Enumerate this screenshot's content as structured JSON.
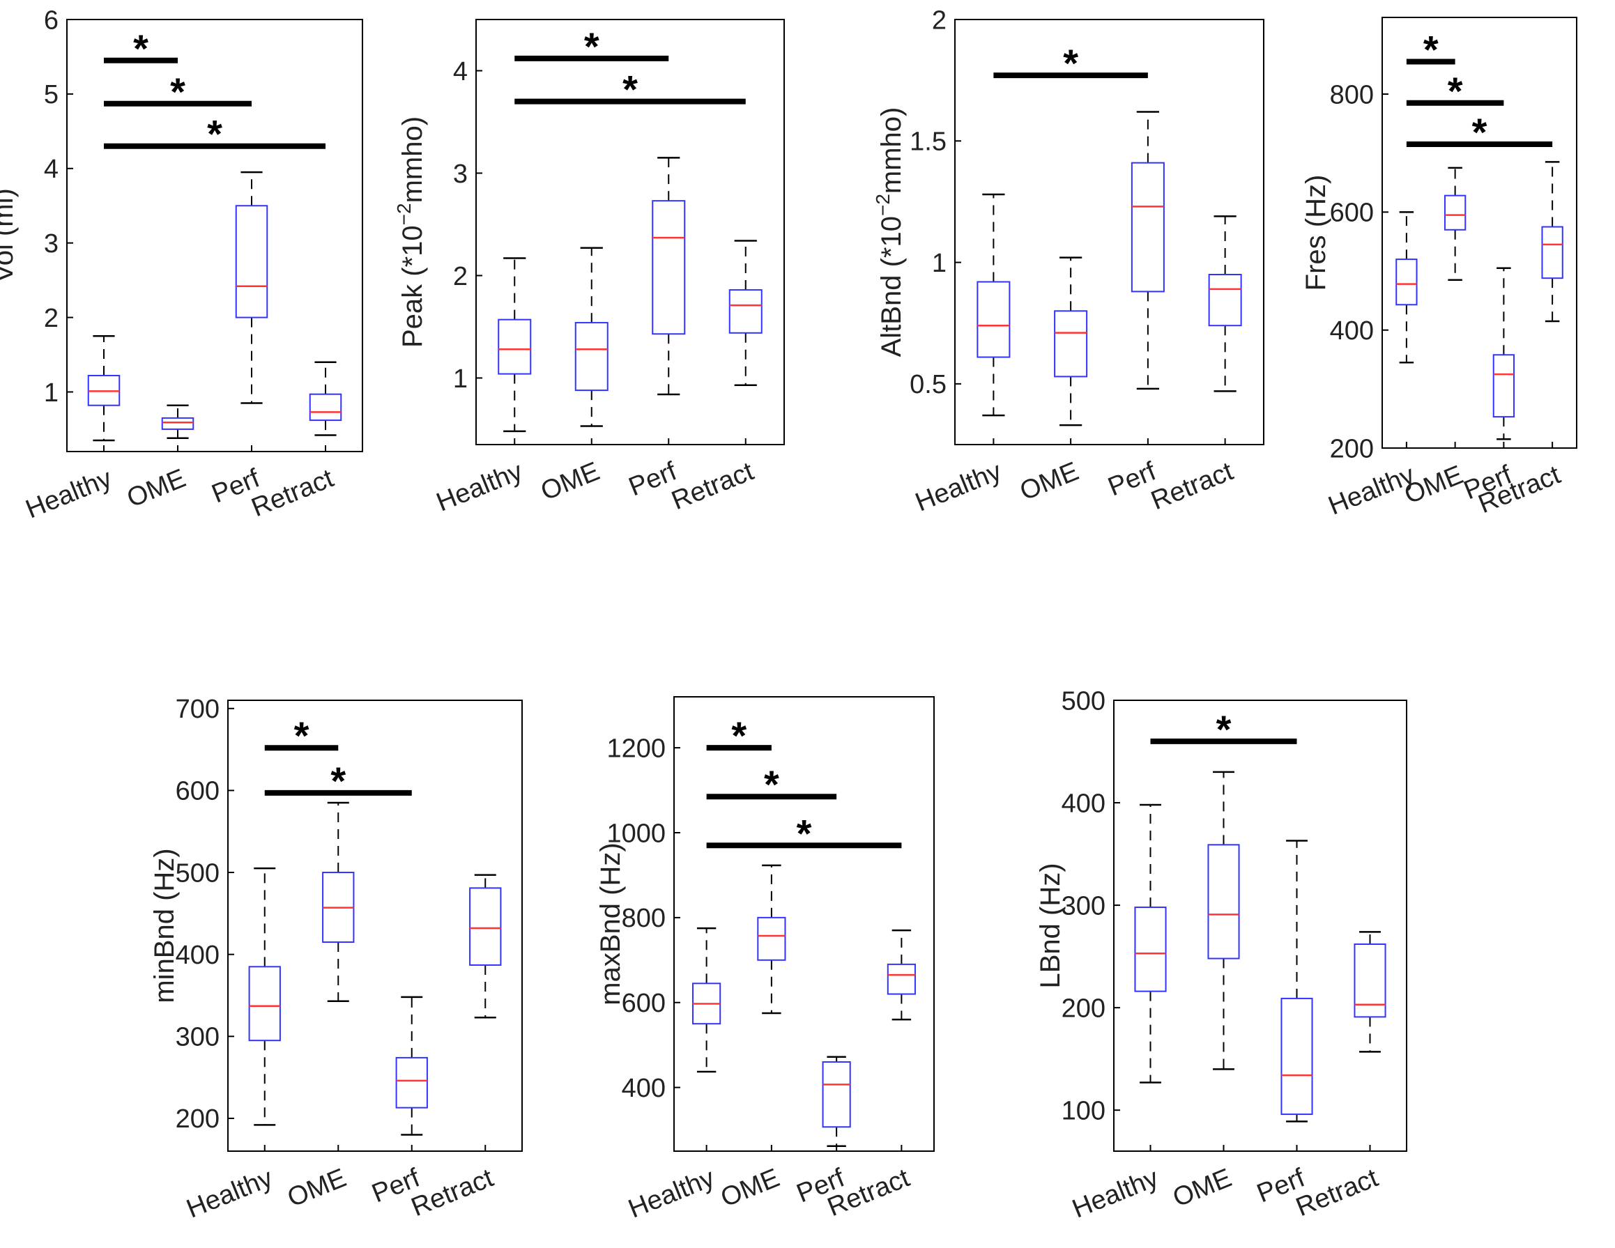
{
  "figure": {
    "colors": {
      "box": "#3333ff",
      "median": "#ff3333",
      "whisker": "#000000",
      "bar": "#000000",
      "axis": "#000000",
      "text": "#222222"
    }
  },
  "chart_data": [
    {
      "id": "vol",
      "type": "box",
      "ylabel": "Vol (ml)",
      "categories": [
        "Healthy",
        "OME",
        "Perf",
        "Retract"
      ],
      "ylim": [
        0.2,
        6
      ],
      "yticks": [
        1,
        2,
        3,
        4,
        5,
        6
      ],
      "boxes": [
        {
          "min": 0.35,
          "q1": 0.82,
          "median": 1.01,
          "q3": 1.22,
          "max": 1.75
        },
        {
          "min": 0.38,
          "q1": 0.5,
          "median": 0.59,
          "q3": 0.65,
          "max": 0.82
        },
        {
          "min": 0.85,
          "q1": 2.0,
          "median": 2.42,
          "q3": 3.5,
          "max": 3.95
        },
        {
          "min": 0.42,
          "q1": 0.62,
          "median": 0.73,
          "q3": 0.97,
          "max": 1.4
        }
      ],
      "significance": [
        {
          "from": "Healthy",
          "to": "OME",
          "y": 5.45,
          "label": "*"
        },
        {
          "from": "Healthy",
          "to": "Perf",
          "y": 4.87,
          "label": "*"
        },
        {
          "from": "Healthy",
          "to": "Retract",
          "y": 4.3,
          "label": "*"
        }
      ]
    },
    {
      "id": "peak",
      "type": "box",
      "ylabel": "Peak (*10",
      "ylabel_sup": "−2",
      "ylabel_tail": "mmho)",
      "categories": [
        "Healthy",
        "OME",
        "Perf",
        "Retract"
      ],
      "ylim": [
        0.35,
        4.5
      ],
      "yticks": [
        1,
        2,
        3,
        4
      ],
      "boxes": [
        {
          "min": 0.48,
          "q1": 1.04,
          "median": 1.28,
          "q3": 1.57,
          "max": 2.17
        },
        {
          "min": 0.53,
          "q1": 0.88,
          "median": 1.28,
          "q3": 1.54,
          "max": 2.27
        },
        {
          "min": 0.84,
          "q1": 1.43,
          "median": 2.37,
          "q3": 2.73,
          "max": 3.15
        },
        {
          "min": 0.93,
          "q1": 1.44,
          "median": 1.71,
          "q3": 1.86,
          "max": 2.34
        }
      ],
      "significance": [
        {
          "from": "Healthy",
          "to": "Perf",
          "y": 4.12,
          "label": "*"
        },
        {
          "from": "Healthy",
          "to": "Retract",
          "y": 3.7,
          "label": "*"
        }
      ]
    },
    {
      "id": "altbnd",
      "type": "box",
      "ylabel": "AltBnd (*10",
      "ylabel_sup": "−2",
      "ylabel_tail": "mmho)",
      "categories": [
        "Healthy",
        "OME",
        "Perf",
        "Retract"
      ],
      "ylim": [
        0.25,
        2
      ],
      "yticks": [
        0.5,
        1,
        1.5,
        2
      ],
      "boxes": [
        {
          "min": 0.37,
          "q1": 0.61,
          "median": 0.74,
          "q3": 0.92,
          "max": 1.28
        },
        {
          "min": 0.33,
          "q1": 0.53,
          "median": 0.71,
          "q3": 0.8,
          "max": 1.02
        },
        {
          "min": 0.48,
          "q1": 0.88,
          "median": 1.23,
          "q3": 1.41,
          "max": 1.62
        },
        {
          "min": 0.47,
          "q1": 0.74,
          "median": 0.89,
          "q3": 0.95,
          "max": 1.19
        }
      ],
      "significance": [
        {
          "from": "Healthy",
          "to": "Perf",
          "y": 1.77,
          "label": "*"
        }
      ]
    },
    {
      "id": "fres",
      "type": "box",
      "ylabel": "Fres (Hz)",
      "categories": [
        "Healthy",
        "OME",
        "Perf",
        "Retract"
      ],
      "ylim": [
        200,
        930
      ],
      "yticks": [
        200,
        400,
        600,
        800
      ],
      "boxes": [
        {
          "min": 345,
          "q1": 443,
          "median": 478,
          "q3": 520,
          "max": 600
        },
        {
          "min": 485,
          "q1": 570,
          "median": 595,
          "q3": 628,
          "max": 675
        },
        {
          "min": 215,
          "q1": 253,
          "median": 325,
          "q3": 358,
          "max": 505
        },
        {
          "min": 415,
          "q1": 488,
          "median": 545,
          "q3": 575,
          "max": 685
        }
      ],
      "significance": [
        {
          "from": "Healthy",
          "to": "OME",
          "y": 855,
          "label": "*"
        },
        {
          "from": "Healthy",
          "to": "Perf",
          "y": 785,
          "label": "*"
        },
        {
          "from": "Healthy",
          "to": "Retract",
          "y": 715,
          "label": "*"
        }
      ]
    },
    {
      "id": "minbnd",
      "type": "box",
      "ylabel": "minBnd (Hz)",
      "categories": [
        "Healthy",
        "OME",
        "Perf",
        "Retract"
      ],
      "ylim": [
        160,
        710
      ],
      "yticks": [
        200,
        300,
        400,
        500,
        600,
        700
      ],
      "boxes": [
        {
          "min": 192,
          "q1": 295,
          "median": 337,
          "q3": 385,
          "max": 505
        },
        {
          "min": 343,
          "q1": 415,
          "median": 457,
          "q3": 500,
          "max": 585
        },
        {
          "min": 180,
          "q1": 213,
          "median": 246,
          "q3": 274,
          "max": 348
        },
        {
          "min": 323,
          "q1": 387,
          "median": 432,
          "q3": 481,
          "max": 497
        }
      ],
      "significance": [
        {
          "from": "Healthy",
          "to": "OME",
          "y": 652,
          "label": "*"
        },
        {
          "from": "Healthy",
          "to": "Perf",
          "y": 597,
          "label": "*"
        }
      ]
    },
    {
      "id": "maxbnd",
      "type": "box",
      "ylabel": "maxBnd (Hz)",
      "categories": [
        "Healthy",
        "OME",
        "Perf",
        "Retract"
      ],
      "ylim": [
        250,
        1320
      ],
      "yticks": [
        400,
        600,
        800,
        1000,
        1200
      ],
      "boxes": [
        {
          "min": 437,
          "q1": 550,
          "median": 597,
          "q3": 645,
          "max": 775
        },
        {
          "min": 575,
          "q1": 700,
          "median": 757,
          "q3": 800,
          "max": 923
        },
        {
          "min": 262,
          "q1": 307,
          "median": 407,
          "q3": 460,
          "max": 472
        },
        {
          "min": 560,
          "q1": 620,
          "median": 665,
          "q3": 690,
          "max": 770
        }
      ],
      "significance": [
        {
          "from": "Healthy",
          "to": "OME",
          "y": 1200,
          "label": "*"
        },
        {
          "from": "Healthy",
          "to": "Perf",
          "y": 1085,
          "label": "*"
        },
        {
          "from": "Healthy",
          "to": "Retract",
          "y": 970,
          "label": "*"
        }
      ]
    },
    {
      "id": "lbnd",
      "type": "box",
      "ylabel": "LBnd (Hz)",
      "categories": [
        "Healthy",
        "OME",
        "Perf",
        "Retract"
      ],
      "ylim": [
        60,
        500
      ],
      "yticks": [
        100,
        200,
        300,
        400,
        500
      ],
      "boxes": [
        {
          "min": 127,
          "q1": 216,
          "median": 253,
          "q3": 298,
          "max": 398
        },
        {
          "min": 140,
          "q1": 248,
          "median": 291,
          "q3": 359,
          "max": 430
        },
        {
          "min": 89,
          "q1": 96,
          "median": 134,
          "q3": 209,
          "max": 363
        },
        {
          "min": 157,
          "q1": 191,
          "median": 203,
          "q3": 262,
          "max": 274
        }
      ],
      "significance": [
        {
          "from": "Healthy",
          "to": "Perf",
          "y": 460,
          "label": "*"
        }
      ]
    }
  ]
}
